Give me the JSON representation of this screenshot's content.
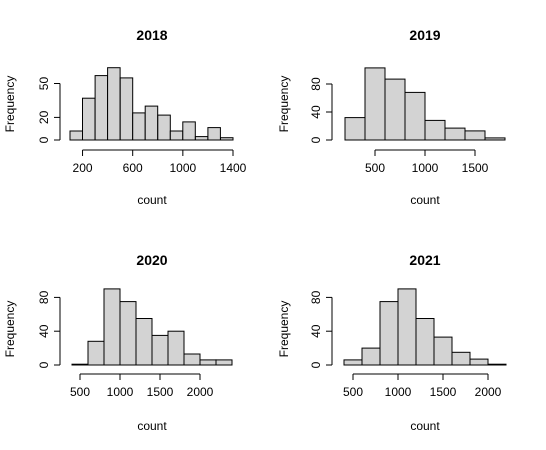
{
  "chart_data": [
    {
      "type": "histogram",
      "title": "2018",
      "xlabel": "count",
      "ylabel": "Frequency",
      "bin_width": 100,
      "bins": [
        [
          100,
          200,
          8
        ],
        [
          200,
          300,
          37
        ],
        [
          300,
          400,
          57
        ],
        [
          400,
          500,
          64
        ],
        [
          500,
          600,
          55
        ],
        [
          600,
          700,
          24
        ],
        [
          700,
          800,
          30
        ],
        [
          800,
          900,
          22
        ],
        [
          900,
          1000,
          8
        ],
        [
          1000,
          1100,
          16
        ],
        [
          1100,
          1200,
          3
        ],
        [
          1200,
          1300,
          11
        ],
        [
          1300,
          1400,
          2
        ]
      ],
      "xticks": [
        200,
        600,
        1000,
        1400
      ],
      "yticks": [
        0,
        20,
        50
      ]
    },
    {
      "type": "histogram",
      "title": "2019",
      "xlabel": "count",
      "ylabel": "Frequency",
      "bin_width": 200,
      "bins": [
        [
          200,
          400,
          32
        ],
        [
          400,
          600,
          103
        ],
        [
          600,
          800,
          87
        ],
        [
          800,
          1000,
          68
        ],
        [
          1000,
          1200,
          28
        ],
        [
          1200,
          1400,
          17
        ],
        [
          1400,
          1600,
          13
        ],
        [
          1600,
          1800,
          3
        ]
      ],
      "xticks": [
        500,
        1000,
        1500
      ],
      "yticks": [
        0,
        40,
        80
      ]
    },
    {
      "type": "histogram",
      "title": "2020",
      "xlabel": "count",
      "ylabel": "Frequency",
      "bin_width": 200,
      "bins": [
        [
          400,
          600,
          1
        ],
        [
          600,
          800,
          28
        ],
        [
          800,
          1000,
          90
        ],
        [
          1000,
          1200,
          75
        ],
        [
          1200,
          1400,
          55
        ],
        [
          1400,
          1600,
          35
        ],
        [
          1600,
          1800,
          40
        ],
        [
          1800,
          2000,
          13
        ],
        [
          2000,
          2200,
          6
        ],
        [
          2200,
          2400,
          6
        ]
      ],
      "xticks": [
        500,
        1000,
        1500,
        2000
      ],
      "yticks": [
        0,
        40,
        80
      ]
    },
    {
      "type": "histogram",
      "title": "2021",
      "xlabel": "count",
      "ylabel": "Frequency",
      "bin_width": 200,
      "bins": [
        [
          400,
          600,
          6
        ],
        [
          600,
          800,
          20
        ],
        [
          800,
          1000,
          75
        ],
        [
          1000,
          1200,
          90
        ],
        [
          1200,
          1400,
          55
        ],
        [
          1400,
          1600,
          33
        ],
        [
          1600,
          1800,
          15
        ],
        [
          1800,
          2000,
          7
        ],
        [
          2000,
          2200,
          1
        ]
      ],
      "xticks": [
        500,
        1000,
        1500,
        2000
      ],
      "yticks": [
        0,
        40,
        80
      ]
    }
  ]
}
